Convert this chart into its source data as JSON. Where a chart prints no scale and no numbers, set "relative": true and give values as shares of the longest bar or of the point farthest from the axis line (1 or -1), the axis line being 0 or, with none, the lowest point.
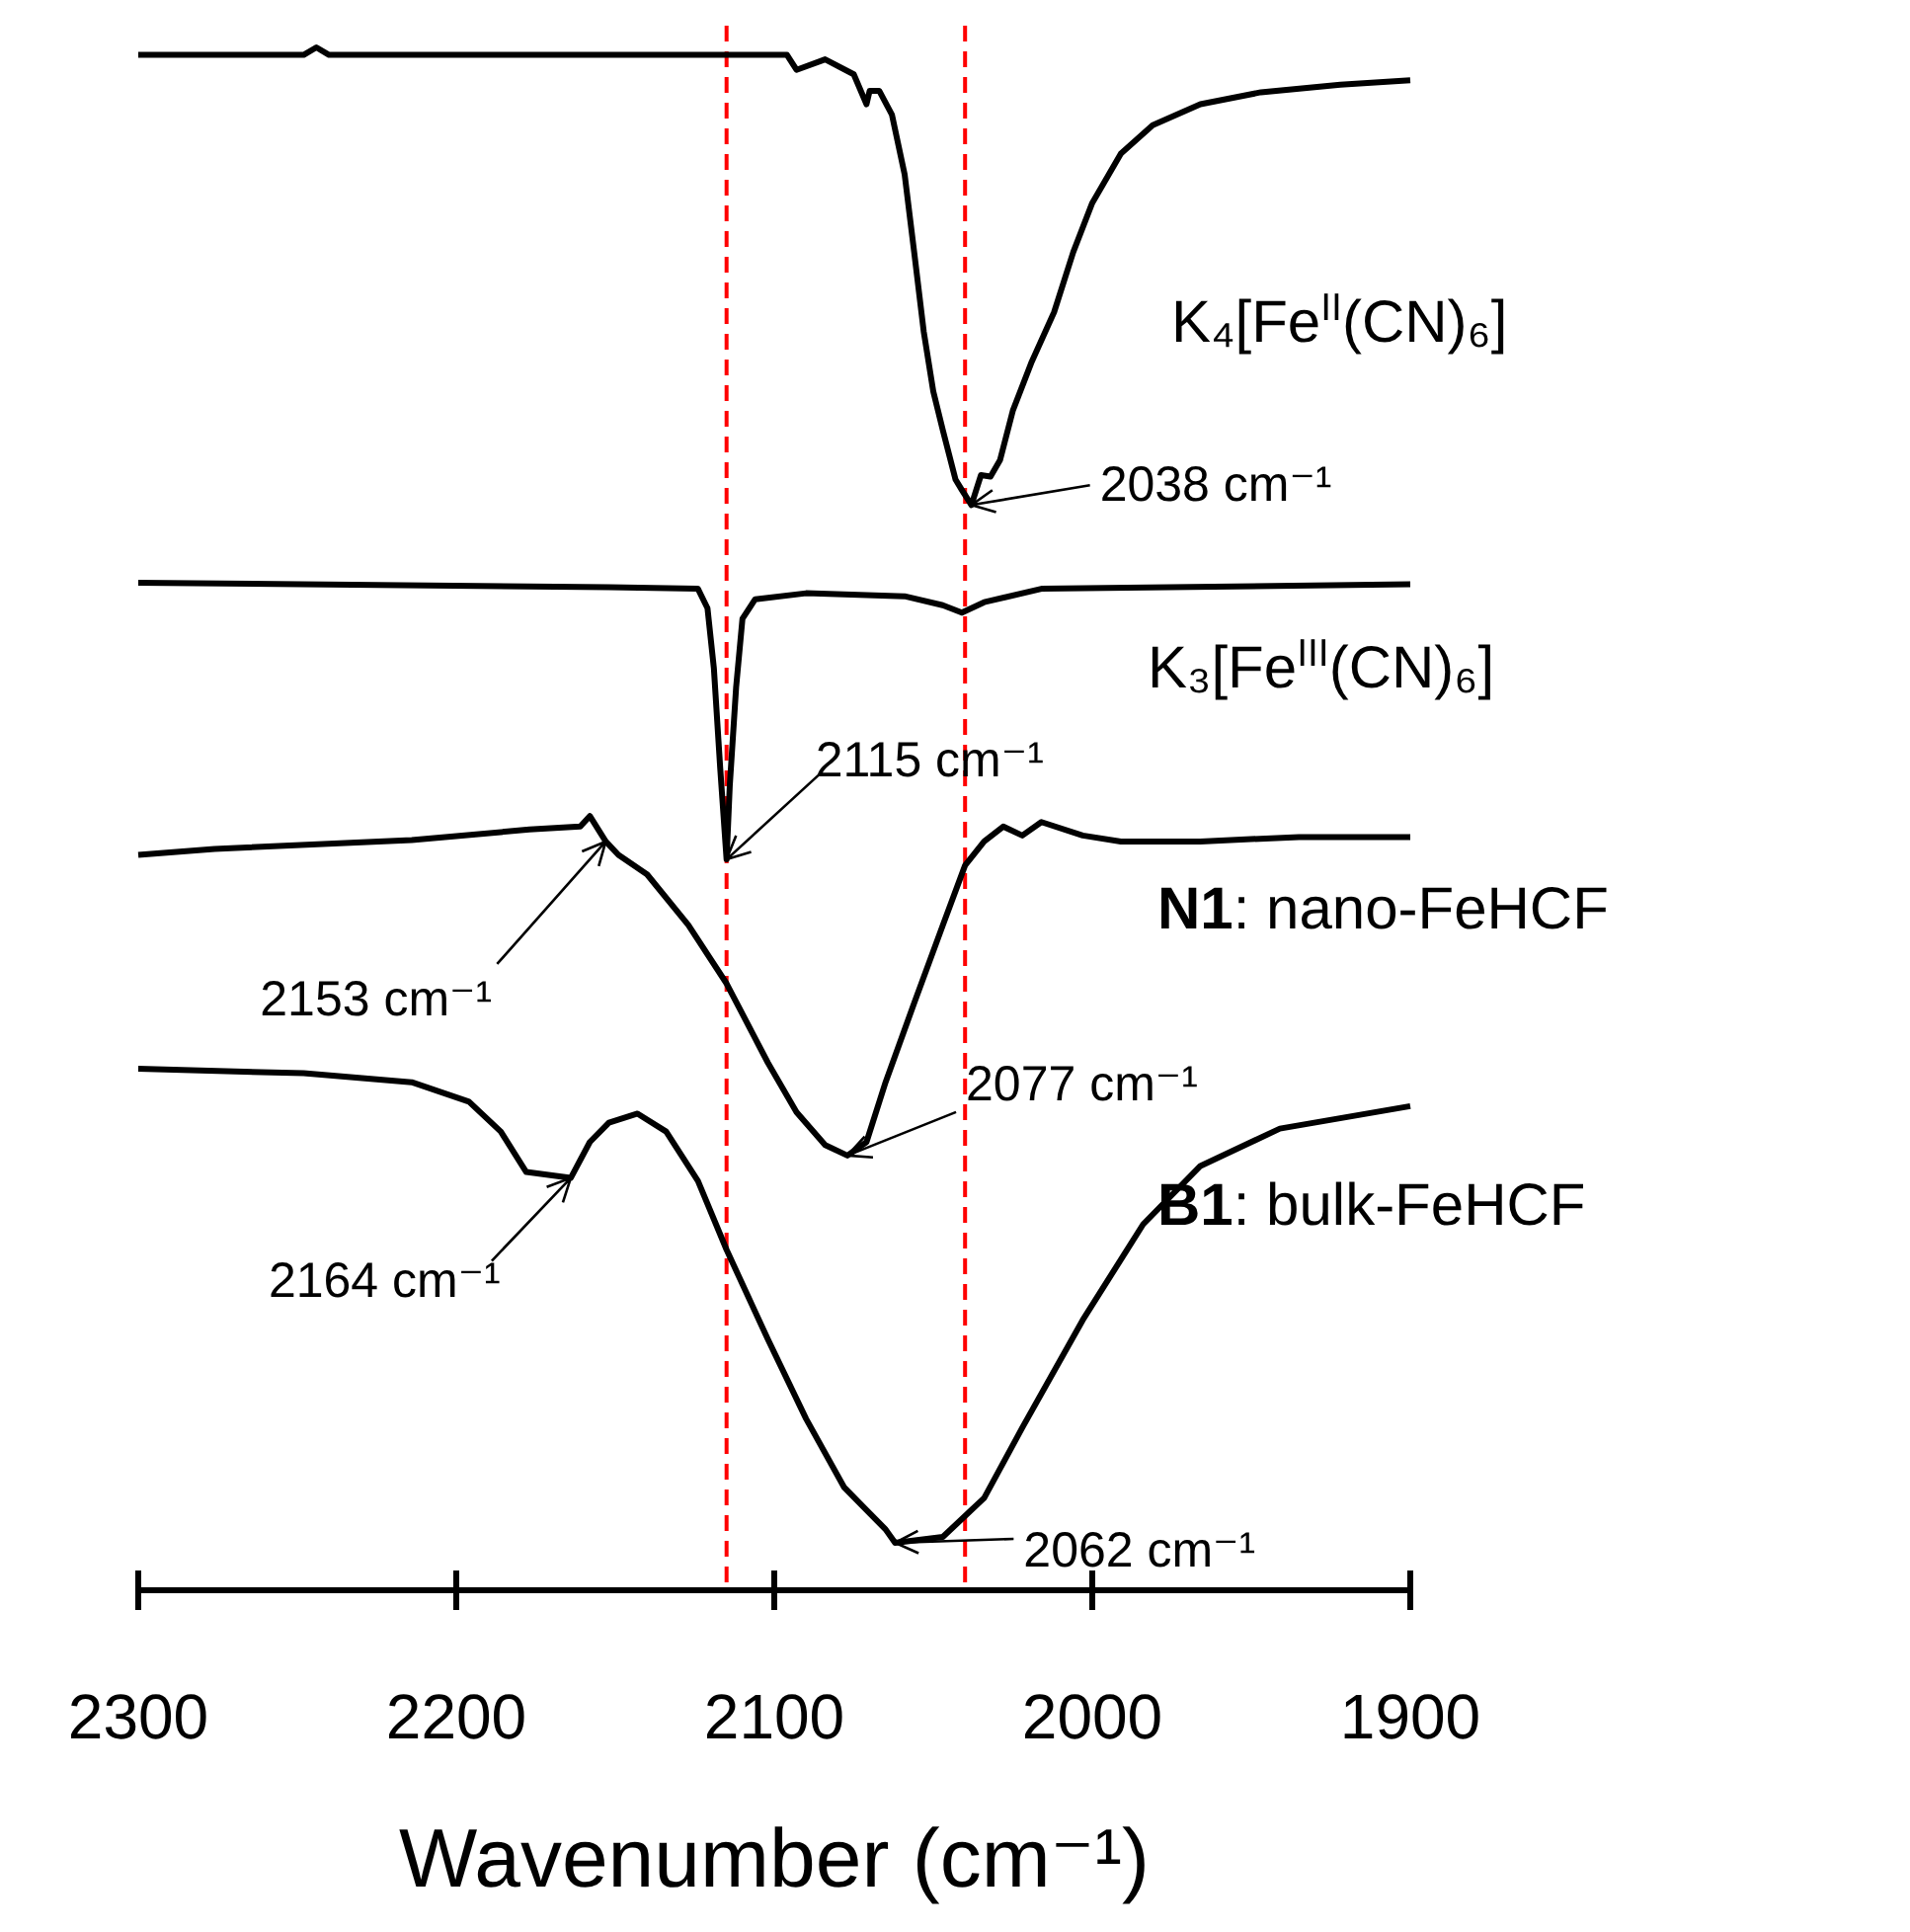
{
  "chart_data": {
    "type": "line",
    "relative": true,
    "xlabel": "Wavenumber (cm⁻¹)",
    "xlim": [
      2300,
      1900
    ],
    "xticks": [
      2300,
      2200,
      2100,
      2000,
      1900
    ],
    "series": [
      {
        "name": "K₄[Fe$^{II}$(CN)₆]",
        "color": "#000000",
        "x": [
          2300,
          2248,
          2244,
          2240,
          2096,
          2093,
          2084,
          2075,
          2071,
          2070,
          2067,
          2063,
          2059,
          2056,
          2053,
          2050,
          2047,
          2043,
          2041,
          2038,
          2035,
          2032,
          2029,
          2025,
          2019,
          2012,
          2006,
          2000,
          1991,
          1981,
          1966,
          1947,
          1922,
          1900
        ],
        "values": [
          0.995,
          0.995,
          1,
          0.995,
          0.995,
          0.985,
          0.992,
          0.982,
          0.962,
          0.971,
          0.971,
          0.955,
          0.915,
          0.863,
          0.81,
          0.77,
          0.744,
          0.711,
          0.704,
          0.694,
          0.714,
          0.713,
          0.724,
          0.757,
          0.79,
          0.823,
          0.863,
          0.896,
          0.929,
          0.948,
          0.962,
          0.97,
          0.975,
          0.978
        ]
      },
      {
        "name": "K₃[Fe$^{III}$(CN)₆]",
        "color": "#000000",
        "x": [
          2300,
          2152,
          2124,
          2121,
          2119,
          2117,
          2115,
          2114,
          2112,
          2110,
          2106,
          2090,
          2059,
          2047,
          2041,
          2034,
          2016,
          1900
        ],
        "values": [
          0.642,
          0.639,
          0.638,
          0.625,
          0.585,
          0.518,
          0.457,
          0.506,
          0.572,
          0.618,
          0.631,
          0.635,
          0.633,
          0.627,
          0.622,
          0.629,
          0.638,
          0.641
        ]
      },
      {
        "name": "N1: nano-FeHCF",
        "color": "#000000",
        "x": [
          2300,
          2276,
          2214,
          2177,
          2161,
          2158,
          2153,
          2149,
          2140,
          2127,
          2115,
          2102,
          2093,
          2084,
          2077,
          2071,
          2065,
          2056,
          2047,
          2040,
          2034,
          2028,
          2022,
          2016,
          2003,
          1991,
          1966,
          1935,
          1900
        ],
        "values": [
          0.46,
          0.464,
          0.47,
          0.477,
          0.479,
          0.486,
          0.469,
          0.46,
          0.447,
          0.413,
          0.374,
          0.321,
          0.288,
          0.266,
          0.259,
          0.268,
          0.308,
          0.361,
          0.413,
          0.453,
          0.469,
          0.479,
          0.473,
          0.482,
          0.473,
          0.469,
          0.469,
          0.472,
          0.472
        ]
      },
      {
        "name": "B1: bulk-FeHCF",
        "color": "#000000",
        "x": [
          2300,
          2248,
          2214,
          2196,
          2186,
          2178,
          2164,
          2158,
          2152,
          2143,
          2134,
          2124,
          2115,
          2102,
          2090,
          2078,
          2065,
          2062,
          2047,
          2034,
          2022,
          2003,
          1984,
          1966,
          1941,
          1900
        ],
        "values": [
          0.317,
          0.314,
          0.308,
          0.295,
          0.275,
          0.248,
          0.244,
          0.268,
          0.281,
          0.287,
          0.275,
          0.242,
          0.196,
          0.136,
          0.083,
          0.037,
          0.009,
          0,
          0.004,
          0.03,
          0.077,
          0.149,
          0.213,
          0.252,
          0.277,
          0.292
        ]
      }
    ],
    "ref_lines": [
      {
        "axis": "x",
        "value": 2115,
        "color": "#ff0000",
        "line_style": "dashed"
      },
      {
        "axis": "x",
        "value": 2040,
        "color": "#ff0000",
        "line_style": "dashed"
      }
    ],
    "annotations": [
      {
        "text": "2038 cm⁻¹",
        "x": 2038,
        "y": 0.694
      },
      {
        "text": "2115 cm⁻¹",
        "x": 2115,
        "y": 0.457
      },
      {
        "text": "2153 cm⁻¹",
        "x": 2153,
        "y": 0.469
      },
      {
        "text": "2077 cm⁻¹",
        "x": 2077,
        "y": 0.259
      },
      {
        "text": "2164 cm⁻¹",
        "x": 2164,
        "y": 0.244
      },
      {
        "text": "2062 cm⁻¹",
        "x": 2062,
        "y": 0
      }
    ]
  }
}
